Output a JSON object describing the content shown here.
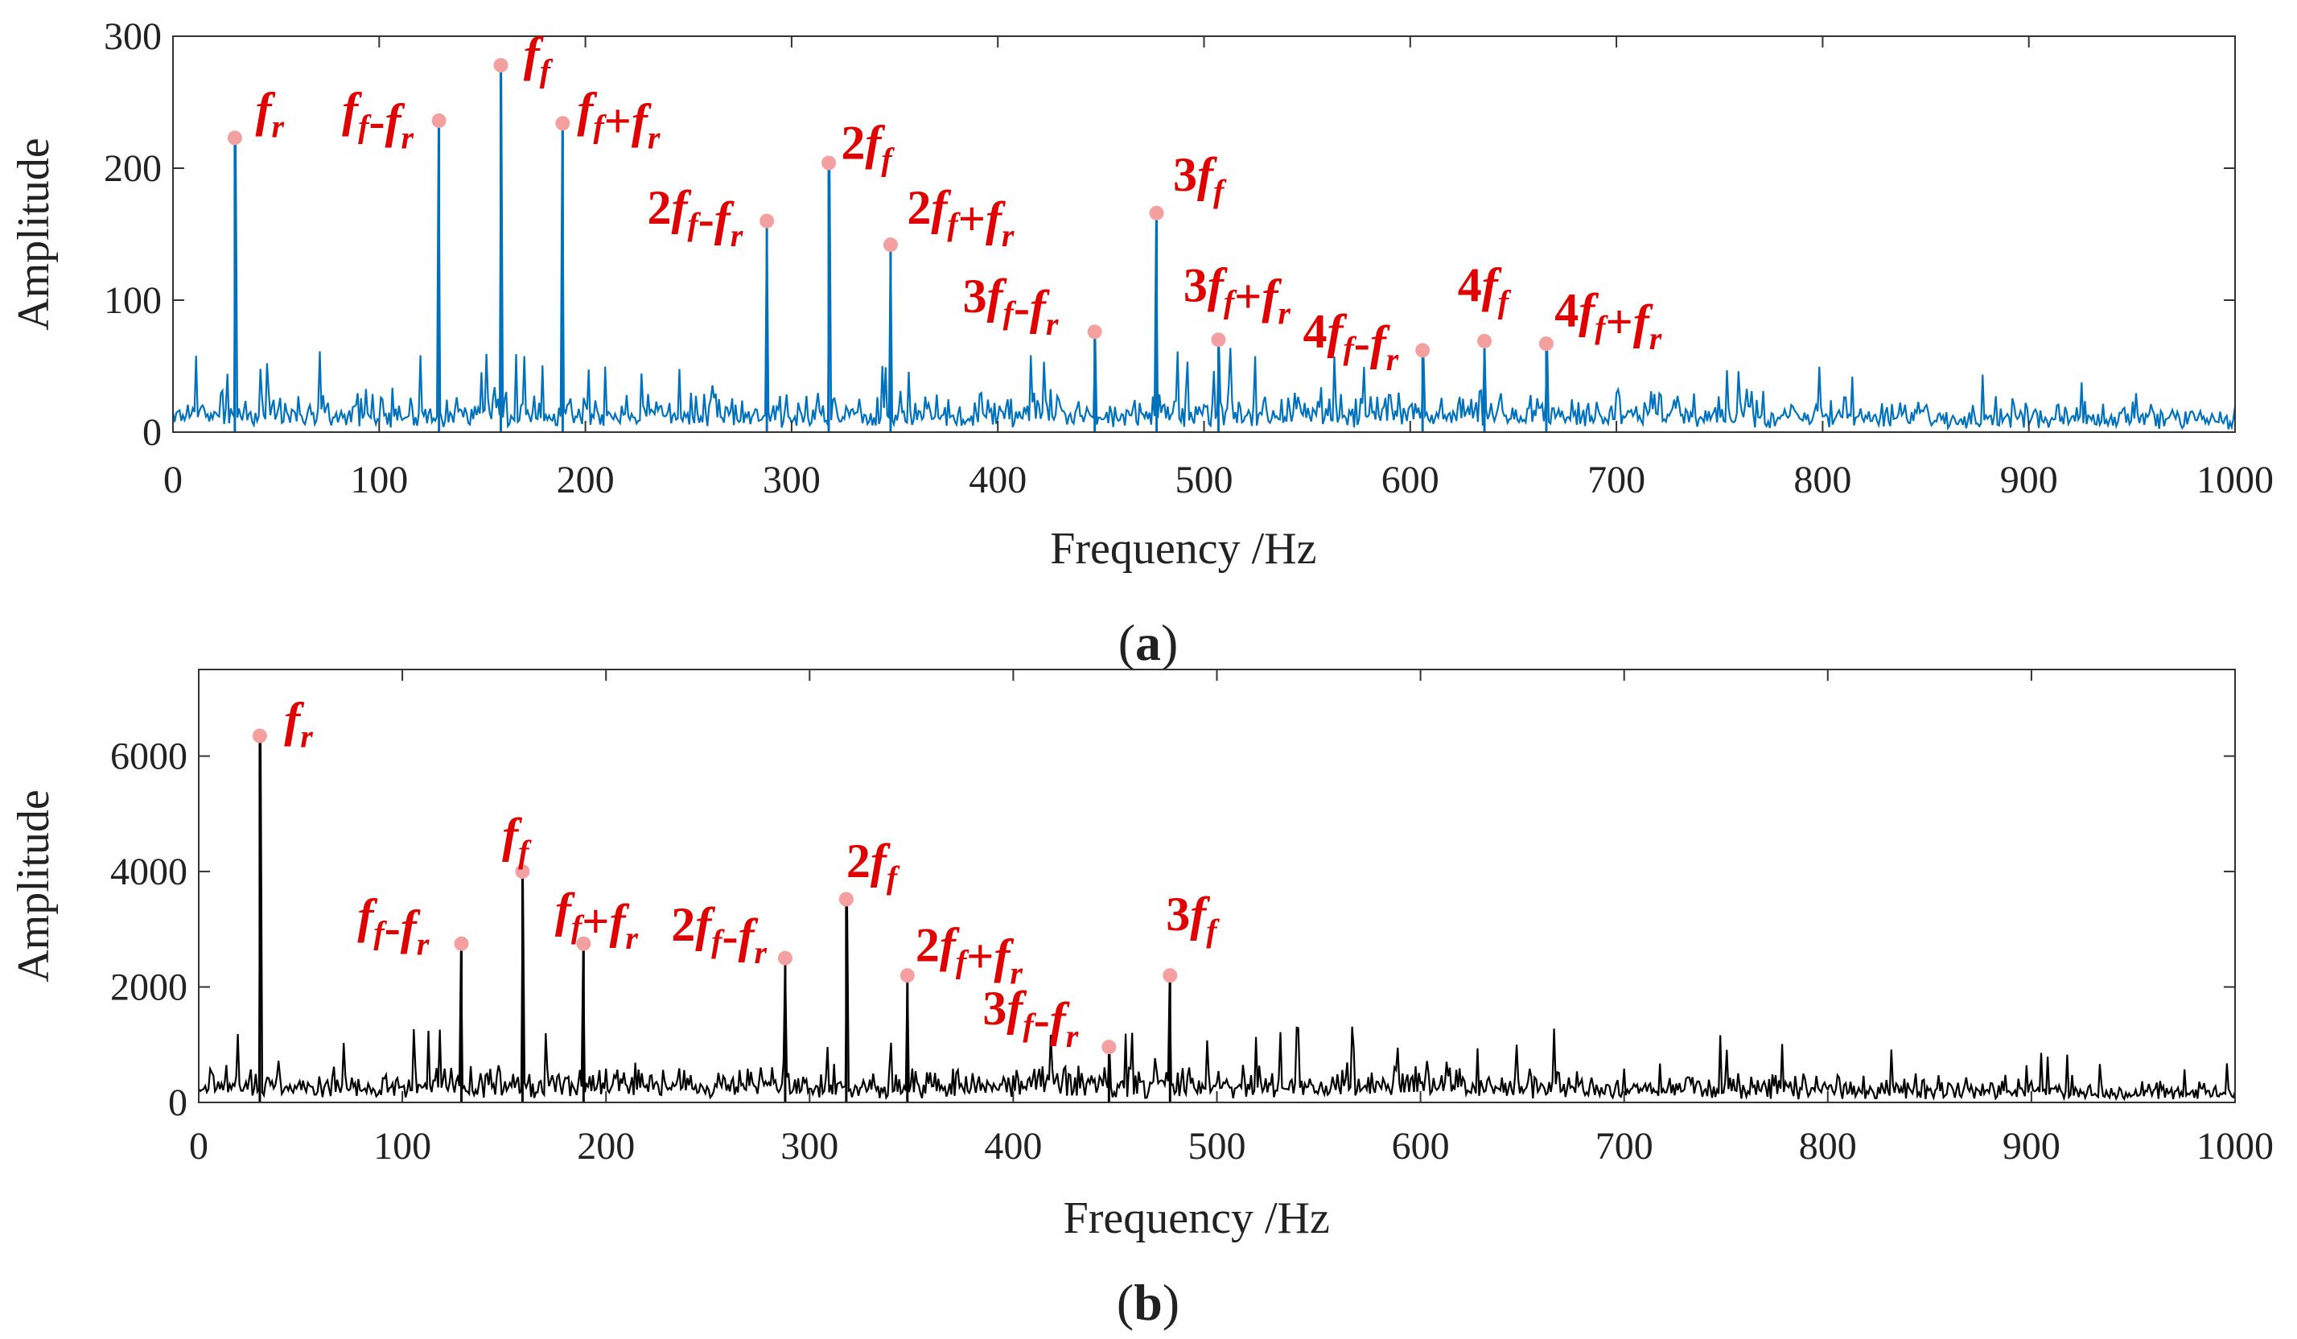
{
  "chart_data": [
    {
      "panel": "a",
      "type": "line",
      "caption": {
        "open": "(",
        "letter": "a",
        "close": ")"
      },
      "xlabel": "Frequency /Hz",
      "ylabel": "Amplitude",
      "xlim": [
        0,
        1000
      ],
      "ylim": [
        0,
        300
      ],
      "xticks": [
        0,
        100,
        200,
        300,
        400,
        500,
        600,
        700,
        800,
        900,
        1000
      ],
      "yticks": [
        0,
        100,
        200,
        300
      ],
      "line_color": "#0072BD",
      "marker_color": "#F4A0A0",
      "label_color": "#E00000",
      "noise_level": 20,
      "noise_decay_start_hz": 700,
      "noise_level_end": 12,
      "seed": 7,
      "peaks": [
        {
          "x": 30,
          "y": 223,
          "label": "fr"
        },
        {
          "x": 129,
          "y": 236,
          "label": "ff-fr"
        },
        {
          "x": 159,
          "y": 278,
          "label": "ff"
        },
        {
          "x": 189,
          "y": 234,
          "label": "ff+fr"
        },
        {
          "x": 288,
          "y": 160,
          "label": "2ff-fr"
        },
        {
          "x": 318,
          "y": 204,
          "label": "2ff"
        },
        {
          "x": 348,
          "y": 142,
          "label": "2ff+fr"
        },
        {
          "x": 447,
          "y": 76,
          "label": "3ff-fr"
        },
        {
          "x": 477,
          "y": 166,
          "label": "3ff"
        },
        {
          "x": 507,
          "y": 70,
          "label": "3ff+fr"
        },
        {
          "x": 606,
          "y": 62,
          "label": "4ff-fr"
        },
        {
          "x": 636,
          "y": 69,
          "label": "4ff"
        },
        {
          "x": 666,
          "y": 67,
          "label": "4ff+fr"
        }
      ],
      "labels": [
        {
          "x": 40,
          "y": 232,
          "parts": [
            {
              "t": "f",
              "s": "r"
            }
          ]
        },
        {
          "x": 82,
          "y": 232,
          "parts": [
            {
              "t": "f",
              "s": "f"
            },
            {
              "t": "-"
            },
            {
              "t": "f",
              "s": "r"
            }
          ]
        },
        {
          "x": 170,
          "y": 274,
          "parts": [
            {
              "t": "f",
              "s": "f"
            }
          ]
        },
        {
          "x": 196,
          "y": 232,
          "parts": [
            {
              "t": "f",
              "s": "f"
            },
            {
              "t": "+"
            },
            {
              "t": "f",
              "s": "r"
            }
          ]
        },
        {
          "x": 230,
          "y": 158,
          "parts": [
            {
              "t": "2"
            },
            {
              "t": "f",
              "s": "f"
            },
            {
              "t": "-"
            },
            {
              "t": "f",
              "s": "r"
            }
          ]
        },
        {
          "x": 324,
          "y": 207,
          "parts": [
            {
              "t": "2"
            },
            {
              "t": "f",
              "s": "f"
            }
          ]
        },
        {
          "x": 356,
          "y": 158,
          "parts": [
            {
              "t": "2"
            },
            {
              "t": "f",
              "s": "f"
            },
            {
              "t": "+"
            },
            {
              "t": "f",
              "s": "r"
            }
          ]
        },
        {
          "x": 383,
          "y": 91,
          "parts": [
            {
              "t": "3"
            },
            {
              "t": "f",
              "s": "f"
            },
            {
              "t": "-"
            },
            {
              "t": "f",
              "s": "r"
            }
          ]
        },
        {
          "x": 485,
          "y": 183,
          "parts": [
            {
              "t": "3"
            },
            {
              "t": "f",
              "s": "f"
            }
          ]
        },
        {
          "x": 490,
          "y": 99,
          "parts": [
            {
              "t": "3"
            },
            {
              "t": "f",
              "s": "f"
            },
            {
              "t": "+"
            },
            {
              "t": "f",
              "s": "r"
            }
          ]
        },
        {
          "x": 548,
          "y": 64,
          "parts": [
            {
              "t": "4"
            },
            {
              "t": "f",
              "s": "f"
            },
            {
              "t": "-"
            },
            {
              "t": "f",
              "s": "r"
            }
          ]
        },
        {
          "x": 623,
          "y": 99,
          "parts": [
            {
              "t": "4"
            },
            {
              "t": "f",
              "s": "f"
            }
          ]
        },
        {
          "x": 670,
          "y": 80,
          "parts": [
            {
              "t": "4"
            },
            {
              "t": "f",
              "s": "f"
            },
            {
              "t": "+"
            },
            {
              "t": "f",
              "s": "r"
            }
          ]
        }
      ]
    },
    {
      "panel": "b",
      "type": "line",
      "caption": {
        "open": "(",
        "letter": "b",
        "close": ")"
      },
      "xlabel": "Frequency /Hz",
      "ylabel": "Amplitude",
      "xlim": [
        0,
        1000
      ],
      "ylim": [
        0,
        7500
      ],
      "xticks": [
        0,
        100,
        200,
        300,
        400,
        500,
        600,
        700,
        800,
        900,
        1000
      ],
      "yticks": [
        0,
        2000,
        4000,
        6000
      ],
      "line_color": "#000000",
      "marker_color": "#F4A0A0",
      "label_color": "#E00000",
      "noise_level": 420,
      "noise_decay_start_hz": 650,
      "noise_level_end": 230,
      "seed": 19,
      "peaks": [
        {
          "x": 30,
          "y": 6350,
          "label": "fr"
        },
        {
          "x": 129,
          "y": 2750,
          "label": "ff-fr"
        },
        {
          "x": 159,
          "y": 4000,
          "label": "ff"
        },
        {
          "x": 189,
          "y": 2750,
          "label": "ff+fr"
        },
        {
          "x": 288,
          "y": 2500,
          "label": "2ff-fr"
        },
        {
          "x": 318,
          "y": 3520,
          "label": "2ff"
        },
        {
          "x": 348,
          "y": 2200,
          "label": "2ff+fr"
        },
        {
          "x": 447,
          "y": 960,
          "label": "3ff-fr"
        },
        {
          "x": 477,
          "y": 2200,
          "label": "3ff"
        }
      ],
      "labels": [
        {
          "x": 42,
          "y": 6350,
          "parts": [
            {
              "t": "f",
              "s": "r"
            }
          ]
        },
        {
          "x": 78,
          "y": 2950,
          "parts": [
            {
              "t": "f",
              "s": "f"
            },
            {
              "t": "-"
            },
            {
              "t": "f",
              "s": "r"
            }
          ]
        },
        {
          "x": 149,
          "y": 4350,
          "parts": [
            {
              "t": "f",
              "s": "f"
            }
          ]
        },
        {
          "x": 175,
          "y": 3050,
          "parts": [
            {
              "t": "f",
              "s": "f"
            },
            {
              "t": "+"
            },
            {
              "t": "f",
              "s": "r"
            }
          ]
        },
        {
          "x": 232,
          "y": 2800,
          "parts": [
            {
              "t": "2"
            },
            {
              "t": "f",
              "s": "f"
            },
            {
              "t": "-"
            },
            {
              "t": "f",
              "s": "r"
            }
          ]
        },
        {
          "x": 318,
          "y": 3900,
          "parts": [
            {
              "t": "2"
            },
            {
              "t": "f",
              "s": "f"
            }
          ]
        },
        {
          "x": 352,
          "y": 2450,
          "parts": [
            {
              "t": "2"
            },
            {
              "t": "f",
              "s": "f"
            },
            {
              "t": "+"
            },
            {
              "t": "f",
              "s": "r"
            }
          ]
        },
        {
          "x": 385,
          "y": 1350,
          "parts": [
            {
              "t": "3"
            },
            {
              "t": "f",
              "s": "f"
            },
            {
              "t": "-"
            },
            {
              "t": "f",
              "s": "r"
            }
          ]
        },
        {
          "x": 475,
          "y": 2980,
          "parts": [
            {
              "t": "3"
            },
            {
              "t": "f",
              "s": "f"
            }
          ]
        }
      ]
    }
  ]
}
